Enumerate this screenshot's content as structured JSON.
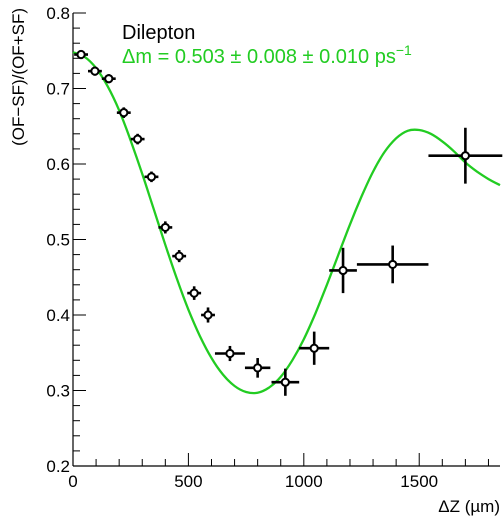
{
  "chart_data": {
    "type": "scatter",
    "title": "Dilepton",
    "fit_label": "Δm = 0.503 ± 0.008 ± 0.010 ps",
    "fit_label_exponent": "−1",
    "xlabel": "ΔZ (µm)",
    "ylabel": "(OF−SF)/(OF+SF)",
    "xlim": [
      0,
      1850
    ],
    "ylim": [
      0.2,
      0.8
    ],
    "x_ticks": [
      "0",
      "500",
      "1000",
      "1500"
    ],
    "y_ticks": [
      "0.2",
      "0.3",
      "0.4",
      "0.5",
      "0.6",
      "0.7",
      "0.8"
    ],
    "grid": false,
    "colors": {
      "fit": "#22cc22",
      "data": "#000000",
      "fit_label": "#22cc22"
    },
    "series": [
      {
        "name": "Dilepton",
        "kind": "points-with-errors",
        "points": [
          {
            "x": 35,
            "y": 0.745,
            "xerr": 30,
            "yerr": 0.006
          },
          {
            "x": 95,
            "y": 0.723,
            "xerr": 30,
            "yerr": 0.006
          },
          {
            "x": 155,
            "y": 0.713,
            "xerr": 30,
            "yerr": 0.006
          },
          {
            "x": 220,
            "y": 0.668,
            "xerr": 30,
            "yerr": 0.007
          },
          {
            "x": 280,
            "y": 0.633,
            "xerr": 30,
            "yerr": 0.007
          },
          {
            "x": 340,
            "y": 0.583,
            "xerr": 30,
            "yerr": 0.007
          },
          {
            "x": 400,
            "y": 0.516,
            "xerr": 30,
            "yerr": 0.008
          },
          {
            "x": 460,
            "y": 0.478,
            "xerr": 30,
            "yerr": 0.008
          },
          {
            "x": 525,
            "y": 0.429,
            "xerr": 30,
            "yerr": 0.009
          },
          {
            "x": 585,
            "y": 0.4,
            "xerr": 30,
            "yerr": 0.01
          },
          {
            "x": 680,
            "y": 0.349,
            "xerr": 65,
            "yerr": 0.01
          },
          {
            "x": 800,
            "y": 0.33,
            "xerr": 55,
            "yerr": 0.013
          },
          {
            "x": 920,
            "y": 0.311,
            "xerr": 60,
            "yerr": 0.018
          },
          {
            "x": 1045,
            "y": 0.356,
            "xerr": 65,
            "yerr": 0.022
          },
          {
            "x": 1170,
            "y": 0.459,
            "xerr": 60,
            "yerr": 0.03
          },
          {
            "x": 1385,
            "y": 0.467,
            "xerr": 155,
            "yerr": 0.025
          },
          {
            "x": 1700,
            "y": 0.611,
            "xerr": 160,
            "yerr": 0.037
          }
        ]
      },
      {
        "name": "fit",
        "kind": "curve",
        "x": [
          0,
          50,
          100,
          150,
          200,
          250,
          300,
          350,
          400,
          450,
          500,
          550,
          600,
          650,
          700,
          750,
          800,
          850,
          900,
          950,
          1000,
          1050,
          1100,
          1150,
          1200,
          1250,
          1300,
          1350,
          1400,
          1450,
          1500,
          1550,
          1600,
          1650,
          1700,
          1750,
          1800,
          1850
        ],
        "y": [
          0.748,
          0.742,
          0.727,
          0.703,
          0.671,
          0.631,
          0.587,
          0.54,
          0.493,
          0.448,
          0.407,
          0.372,
          0.343,
          0.321,
          0.306,
          0.298,
          0.297,
          0.304,
          0.318,
          0.34,
          0.368,
          0.402,
          0.44,
          0.48,
          0.52,
          0.557,
          0.59,
          0.616,
          0.634,
          0.644,
          0.645,
          0.64,
          0.63,
          0.617,
          0.602,
          0.59,
          0.58,
          0.572
        ]
      }
    ]
  }
}
